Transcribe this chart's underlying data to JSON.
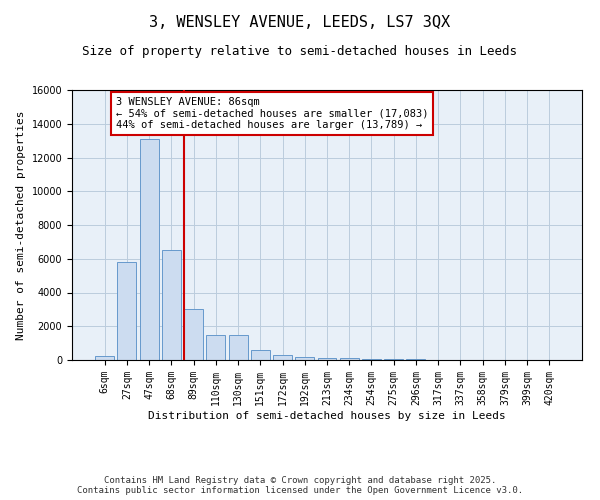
{
  "title_line1": "3, WENSLEY AVENUE, LEEDS, LS7 3QX",
  "title_line2": "Size of property relative to semi-detached houses in Leeds",
  "xlabel": "Distribution of semi-detached houses by size in Leeds",
  "ylabel": "Number of semi-detached properties",
  "categories": [
    "6sqm",
    "27sqm",
    "47sqm",
    "68sqm",
    "89sqm",
    "110sqm",
    "130sqm",
    "151sqm",
    "172sqm",
    "192sqm",
    "213sqm",
    "234sqm",
    "254sqm",
    "275sqm",
    "296sqm",
    "317sqm",
    "337sqm",
    "358sqm",
    "379sqm",
    "399sqm",
    "420sqm"
  ],
  "bar_values": [
    250,
    5800,
    13100,
    6500,
    3050,
    1500,
    1500,
    600,
    300,
    200,
    120,
    100,
    60,
    50,
    30,
    20,
    10,
    10,
    5,
    5,
    5
  ],
  "bar_color": "#ccdcf0",
  "bar_edge_color": "#6699cc",
  "red_line_index": 4,
  "property_label": "3 WENSLEY AVENUE: 86sqm",
  "annotation_line2": "← 54% of semi-detached houses are smaller (17,083)",
  "annotation_line3": "44% of semi-detached houses are larger (13,789) →",
  "annotation_box_color": "#ffffff",
  "annotation_box_edge_color": "#cc0000",
  "red_line_color": "#cc0000",
  "ylim": [
    0,
    16000
  ],
  "yticks": [
    0,
    2000,
    4000,
    6000,
    8000,
    10000,
    12000,
    14000,
    16000
  ],
  "grid_color": "#bbccdd",
  "background_color": "#e8f0f8",
  "footer_line1": "Contains HM Land Registry data © Crown copyright and database right 2025.",
  "footer_line2": "Contains public sector information licensed under the Open Government Licence v3.0.",
  "title_fontsize": 11,
  "subtitle_fontsize": 9,
  "axis_label_fontsize": 8,
  "tick_fontsize": 7,
  "annotation_fontsize": 7.5,
  "footer_fontsize": 6.5
}
